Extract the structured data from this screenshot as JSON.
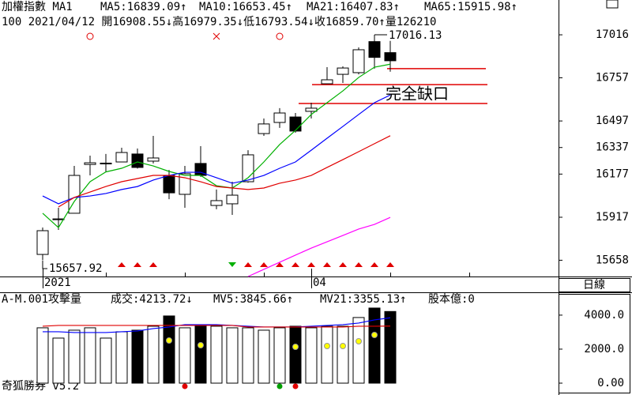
{
  "chart_data": [
    {
      "type": "candlestick",
      "title": "加權指數 MA1",
      "subtitle": "100 2021/04/12 開16908.55↓高16979.35↓低16793.54↓收16859.70↑量126210",
      "categories": [
        "2021",
        null,
        null,
        null,
        null,
        null,
        null,
        null,
        null,
        null,
        null,
        null,
        null,
        null,
        null,
        null,
        null,
        "04",
        null,
        null,
        null,
        null,
        null
      ],
      "open": [
        15693,
        15905,
        15941,
        16235,
        16240,
        16250,
        16298,
        16255,
        16169,
        16055,
        16241,
        15988,
        15998,
        16131,
        16421,
        16488,
        16521,
        16555,
        16721,
        16778,
        16788,
        16975,
        16908.55
      ],
      "high": [
        15855,
        15974,
        16226,
        16288,
        16298,
        16336,
        16331,
        16407,
        16202,
        16226,
        16345,
        16084,
        16131,
        16321,
        16512,
        16574,
        16545,
        16607,
        16821,
        16826,
        16940,
        17016.13,
        16979.35
      ],
      "low": [
        15657.92,
        15841,
        15941,
        16169,
        16188,
        16250,
        16210,
        16241,
        16026,
        15974,
        16160,
        15965,
        15931,
        16125,
        16407,
        16455,
        16426,
        16512,
        16721,
        16726,
        16778,
        16812,
        16793.54
      ],
      "close": [
        15836,
        15907,
        16169,
        16245,
        16243,
        16307,
        16217,
        16274,
        16064,
        16179,
        16169,
        16017,
        16050,
        16293,
        16479,
        16545,
        16436,
        16574,
        16745,
        16816,
        16926,
        16880,
        16859.7
      ],
      "up_color": "#ffffff",
      "down_color": "#000000",
      "series": [
        {
          "name": "MA5:16839.09↑",
          "color": "#00b000",
          "values": [
            15941,
            15855,
            16012,
            16131,
            16190,
            16212,
            16250,
            16226,
            16193,
            16169,
            16169,
            16107,
            16093,
            16155,
            16250,
            16355,
            16440,
            16536,
            16607,
            16678,
            16759,
            16821,
            16839.09
          ]
        },
        {
          "name": "MA10:16653.45↑",
          "color": "#0000ff",
          "values": [
            16045,
            15998,
            16036,
            16045,
            16060,
            16084,
            16102,
            16141,
            16169,
            16188,
            16188,
            16155,
            16122,
            16141,
            16169,
            16212,
            16250,
            16321,
            16393,
            16464,
            16536,
            16607,
            16653.45
          ]
        },
        {
          "name": "MA21:16407.83↑",
          "color": "#e00000",
          "values": [
            null,
            15979,
            16036,
            16069,
            16102,
            16131,
            16150,
            16169,
            16169,
            16155,
            16131,
            16102,
            16093,
            16084,
            16093,
            16122,
            16141,
            16169,
            16217,
            16264,
            16312,
            16360,
            16407.83
          ]
        },
        {
          "name": "MA65:15915.98↑",
          "color": "#ff00ff",
          "values": [
            null,
            null,
            null,
            null,
            null,
            null,
            null,
            null,
            null,
            null,
            null,
            null,
            null,
            15560,
            15603,
            15646,
            15689,
            15731,
            15769,
            15807,
            15846,
            15874,
            15915.98
          ]
        }
      ],
      "ylim": [
        15560,
        17140
      ],
      "yticks": [
        17016,
        16757,
        16497,
        16337,
        16177,
        15917,
        15658
      ],
      "annotations": [
        "17016.13",
        "15657.92",
        "完全缺口"
      ],
      "gap_levels": [
        16812,
        16716,
        16602
      ],
      "gap_color": "#e00000",
      "period": "日線"
    },
    {
      "type": "bar",
      "title": "A-M.001攻擊量",
      "series": [
        {
          "name": "成交:4213.72↓",
          "color": "#008000",
          "values": [
            3255,
            2650,
            3115,
            3255,
            2650,
            3022,
            3115,
            3348,
            3952,
            3255,
            3348,
            3348,
            3255,
            3255,
            3115,
            3255,
            3348,
            3255,
            3348,
            3348,
            3860,
            4417,
            4213.72
          ]
        },
        {
          "name": "MV5:3845.66↑",
          "color": "#0000ff",
          "values": [
            3023,
            3023,
            2976,
            2976,
            2976,
            3023,
            3069,
            3209,
            3302,
            3441,
            3441,
            3441,
            3395,
            3348,
            3302,
            3302,
            3302,
            3348,
            3395,
            3441,
            3534,
            3720,
            3845.66
          ]
        },
        {
          "name": "MV21:3355.13↑",
          "color": "#e00000",
          "values": [
            3348,
            3395,
            3395,
            3395,
            3395,
            3395,
            3395,
            3395,
            3395,
            3395,
            3395,
            3395,
            3395,
            3302,
            3302,
            3302,
            3302,
            3302,
            3302,
            3302,
            3348,
            3348,
            3355.13
          ]
        }
      ],
      "extra": "股本億:0",
      "extra_color": "#ff00ff",
      "ylim": [
        0,
        5250
      ],
      "yticks": [
        {
          "value": 0,
          "label": "0.00"
        },
        {
          "value": 2000,
          "label": "2000.0"
        },
        {
          "value": 4000,
          "label": "4000.0"
        }
      ],
      "footer": "奇狐勝券 v5.2"
    }
  ]
}
